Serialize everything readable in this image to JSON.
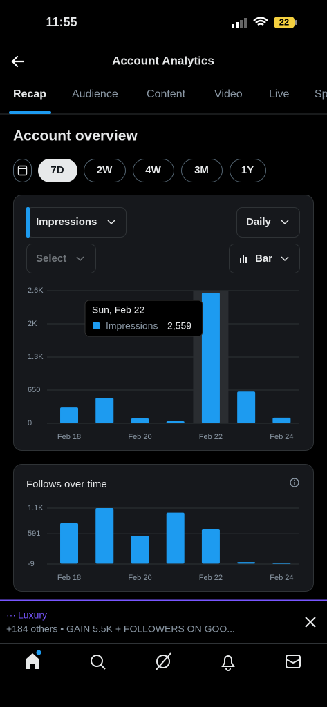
{
  "status_bar": {
    "time": "11:55",
    "battery": "22"
  },
  "header": {
    "title": "Account Analytics"
  },
  "tabs": [
    "Recap",
    "Audience",
    "Content",
    "Video",
    "Live",
    "Sp"
  ],
  "section_title": "Account overview",
  "ranges": [
    "7D",
    "2W",
    "4W",
    "3M",
    "1Y"
  ],
  "controls": {
    "metric": "Impressions",
    "interval": "Daily",
    "select": "Select",
    "chart_type": "Bar"
  },
  "chart_data": [
    {
      "type": "bar",
      "categories": [
        "Feb 18",
        null,
        "Feb 20",
        null,
        "Feb 22",
        null,
        "Feb 24"
      ],
      "series": [
        {
          "name": "Impressions",
          "color": "#1d9bf0",
          "values": [
            310,
            500,
            95,
            40,
            2559,
            620,
            110
          ],
          "value_labels": [
            null,
            null,
            null,
            null,
            "2,559",
            null,
            null
          ]
        }
      ],
      "annotation": "Sun, Feb 22",
      "ylim": [
        0,
        2600
      ],
      "yticks": [
        0,
        650,
        {
          "value": 1300,
          "label": "1.3K"
        },
        {
          "value": 1950,
          "label": "2K"
        },
        {
          "value": 2600,
          "label": "2.6K"
        }
      ],
      "grid": true
    },
    {
      "type": "bar",
      "title": "Follows over time",
      "categories": [
        "Feb 18",
        null,
        "Feb 20",
        null,
        "Feb 22",
        null,
        "Feb 24"
      ],
      "series": [
        {
          "name": "Follows",
          "color": "#1d9bf0",
          "values": [
            800,
            1100,
            550,
            1010,
            690,
            30,
            10
          ]
        }
      ],
      "ylim": [
        -9,
        1100
      ],
      "yticks": [
        -9,
        591,
        {
          "value": 1100,
          "label": "1.1K"
        }
      ],
      "grid": true
    }
  ],
  "promo": {
    "name": "Luxury",
    "text": "+184 others • GAIN 5.5K + FOLLOWERS ON GOO..."
  }
}
